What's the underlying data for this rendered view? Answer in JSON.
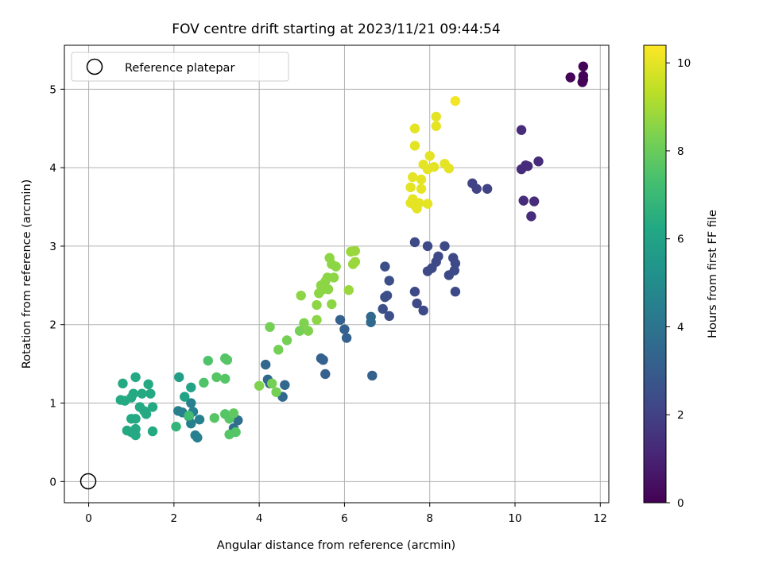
{
  "chart_data": {
    "type": "scatter",
    "title": "FOV centre drift starting at 2023/11/21 09:44:54",
    "xlabel": "Angular distance from reference (arcmin)",
    "ylabel": "Rotation from reference (arcmin)",
    "xlim": [
      -0.57,
      12.2
    ],
    "ylim": [
      -0.27,
      5.56
    ],
    "xticks": [
      0,
      2,
      4,
      6,
      8,
      10,
      12
    ],
    "yticks": [
      0,
      1,
      2,
      3,
      4,
      5
    ],
    "grid": true,
    "legend": {
      "position": "top-left",
      "entries": [
        "Reference platepar"
      ]
    },
    "reference_point": {
      "x": 0,
      "y": 0,
      "label": "Reference platepar"
    },
    "colorbar": {
      "label": "Hours from first FF file",
      "range": [
        0,
        10.4
      ],
      "ticks": [
        0,
        2,
        4,
        6,
        8,
        10
      ],
      "colormap": "viridis"
    },
    "points": [
      {
        "x": 11.3,
        "y": 5.15,
        "h": 0.1
      },
      {
        "x": 11.6,
        "y": 5.29,
        "h": 0.1
      },
      {
        "x": 11.6,
        "y": 5.17,
        "h": 0.1
      },
      {
        "x": 11.6,
        "y": 5.12,
        "h": 0.1
      },
      {
        "x": 11.58,
        "y": 5.09,
        "h": 0.1
      },
      {
        "x": 10.15,
        "y": 4.48,
        "h": 1.3
      },
      {
        "x": 10.55,
        "y": 4.08,
        "h": 1.3
      },
      {
        "x": 10.25,
        "y": 4.03,
        "h": 1.3
      },
      {
        "x": 10.3,
        "y": 4.02,
        "h": 1.3
      },
      {
        "x": 10.15,
        "y": 3.98,
        "h": 1.3
      },
      {
        "x": 10.2,
        "y": 3.58,
        "h": 1.3
      },
      {
        "x": 10.45,
        "y": 3.57,
        "h": 1.3
      },
      {
        "x": 10.38,
        "y": 3.38,
        "h": 1.3
      },
      {
        "x": 9.0,
        "y": 3.8,
        "h": 2.0
      },
      {
        "x": 9.1,
        "y": 3.73,
        "h": 2.0
      },
      {
        "x": 9.35,
        "y": 3.73,
        "h": 2.0
      },
      {
        "x": 7.65,
        "y": 3.05,
        "h": 2.3
      },
      {
        "x": 7.95,
        "y": 3.0,
        "h": 2.3
      },
      {
        "x": 8.35,
        "y": 3.0,
        "h": 2.3
      },
      {
        "x": 8.2,
        "y": 2.87,
        "h": 2.3
      },
      {
        "x": 8.15,
        "y": 2.8,
        "h": 2.3
      },
      {
        "x": 8.55,
        "y": 2.85,
        "h": 2.3
      },
      {
        "x": 8.6,
        "y": 2.78,
        "h": 2.3
      },
      {
        "x": 8.05,
        "y": 2.72,
        "h": 2.3
      },
      {
        "x": 7.95,
        "y": 2.68,
        "h": 2.3
      },
      {
        "x": 8.58,
        "y": 2.69,
        "h": 2.3
      },
      {
        "x": 8.45,
        "y": 2.63,
        "h": 2.3
      },
      {
        "x": 8.6,
        "y": 2.42,
        "h": 2.3
      },
      {
        "x": 7.65,
        "y": 2.42,
        "h": 2.3
      },
      {
        "x": 7.7,
        "y": 2.27,
        "h": 2.3
      },
      {
        "x": 7.85,
        "y": 2.18,
        "h": 2.3
      },
      {
        "x": 6.95,
        "y": 2.74,
        "h": 2.5
      },
      {
        "x": 7.05,
        "y": 2.56,
        "h": 2.5
      },
      {
        "x": 7.0,
        "y": 2.37,
        "h": 2.5
      },
      {
        "x": 6.95,
        "y": 2.35,
        "h": 2.5
      },
      {
        "x": 6.9,
        "y": 2.2,
        "h": 2.5
      },
      {
        "x": 7.05,
        "y": 2.11,
        "h": 2.5
      },
      {
        "x": 5.9,
        "y": 2.06,
        "h": 3.2
      },
      {
        "x": 6.0,
        "y": 1.94,
        "h": 3.2
      },
      {
        "x": 6.05,
        "y": 1.83,
        "h": 3.2
      },
      {
        "x": 5.45,
        "y": 1.57,
        "h": 3.2
      },
      {
        "x": 5.5,
        "y": 1.55,
        "h": 3.2
      },
      {
        "x": 5.55,
        "y": 1.37,
        "h": 3.2
      },
      {
        "x": 6.65,
        "y": 1.35,
        "h": 3.2
      },
      {
        "x": 6.62,
        "y": 2.1,
        "h": 3.5
      },
      {
        "x": 6.62,
        "y": 2.03,
        "h": 3.5
      },
      {
        "x": 4.15,
        "y": 1.49,
        "h": 3.5
      },
      {
        "x": 4.2,
        "y": 1.3,
        "h": 3.5
      },
      {
        "x": 4.25,
        "y": 1.25,
        "h": 3.5
      },
      {
        "x": 4.6,
        "y": 1.23,
        "h": 3.5
      },
      {
        "x": 4.55,
        "y": 1.08,
        "h": 3.5
      },
      {
        "x": 3.4,
        "y": 0.68,
        "h": 3.8
      },
      {
        "x": 3.5,
        "y": 0.78,
        "h": 3.8
      },
      {
        "x": 2.1,
        "y": 0.9,
        "h": 4.5
      },
      {
        "x": 2.2,
        "y": 0.88,
        "h": 4.5
      },
      {
        "x": 2.4,
        "y": 1.0,
        "h": 4.5
      },
      {
        "x": 2.45,
        "y": 0.89,
        "h": 4.5
      },
      {
        "x": 2.6,
        "y": 0.79,
        "h": 4.5
      },
      {
        "x": 2.5,
        "y": 0.59,
        "h": 4.5
      },
      {
        "x": 2.55,
        "y": 0.56,
        "h": 4.5
      },
      {
        "x": 2.4,
        "y": 0.74,
        "h": 4.5
      },
      {
        "x": 2.35,
        "y": 0.83,
        "h": 4.5
      },
      {
        "x": 2.12,
        "y": 1.33,
        "h": 5.8
      },
      {
        "x": 2.4,
        "y": 1.2,
        "h": 6.0
      },
      {
        "x": 2.25,
        "y": 1.08,
        "h": 6.0
      },
      {
        "x": 0.8,
        "y": 1.25,
        "h": 6.3
      },
      {
        "x": 1.1,
        "y": 1.33,
        "h": 6.3
      },
      {
        "x": 1.4,
        "y": 1.24,
        "h": 6.3
      },
      {
        "x": 0.75,
        "y": 1.04,
        "h": 6.3
      },
      {
        "x": 0.85,
        "y": 1.03,
        "h": 6.3
      },
      {
        "x": 1.0,
        "y": 1.07,
        "h": 6.3
      },
      {
        "x": 1.05,
        "y": 1.12,
        "h": 6.3
      },
      {
        "x": 1.25,
        "y": 1.12,
        "h": 6.3
      },
      {
        "x": 1.45,
        "y": 1.12,
        "h": 6.3
      },
      {
        "x": 1.2,
        "y": 0.95,
        "h": 6.3
      },
      {
        "x": 1.3,
        "y": 0.9,
        "h": 6.3
      },
      {
        "x": 1.35,
        "y": 0.86,
        "h": 6.3
      },
      {
        "x": 1.5,
        "y": 0.95,
        "h": 6.3
      },
      {
        "x": 1.0,
        "y": 0.8,
        "h": 6.3
      },
      {
        "x": 1.1,
        "y": 0.8,
        "h": 6.3
      },
      {
        "x": 0.9,
        "y": 0.65,
        "h": 6.3
      },
      {
        "x": 1.0,
        "y": 0.63,
        "h": 6.3
      },
      {
        "x": 1.1,
        "y": 0.67,
        "h": 6.3
      },
      {
        "x": 1.1,
        "y": 0.59,
        "h": 6.3
      },
      {
        "x": 1.5,
        "y": 0.64,
        "h": 6.3
      },
      {
        "x": 2.05,
        "y": 0.7,
        "h": 6.8
      },
      {
        "x": 2.35,
        "y": 0.84,
        "h": 7.2
      },
      {
        "x": 2.7,
        "y": 1.26,
        "h": 7.5
      },
      {
        "x": 2.8,
        "y": 1.54,
        "h": 7.5
      },
      {
        "x": 2.95,
        "y": 0.81,
        "h": 7.6
      },
      {
        "x": 3.0,
        "y": 1.33,
        "h": 7.6
      },
      {
        "x": 3.2,
        "y": 1.31,
        "h": 7.6
      },
      {
        "x": 3.2,
        "y": 1.57,
        "h": 7.6
      },
      {
        "x": 3.25,
        "y": 1.55,
        "h": 7.6
      },
      {
        "x": 3.2,
        "y": 0.86,
        "h": 7.6
      },
      {
        "x": 3.3,
        "y": 0.8,
        "h": 7.6
      },
      {
        "x": 3.3,
        "y": 0.6,
        "h": 7.6
      },
      {
        "x": 3.45,
        "y": 0.63,
        "h": 7.6
      },
      {
        "x": 3.4,
        "y": 0.87,
        "h": 7.8
      },
      {
        "x": 4.0,
        "y": 1.22,
        "h": 8.4
      },
      {
        "x": 4.25,
        "y": 1.97,
        "h": 8.2
      },
      {
        "x": 4.3,
        "y": 1.25,
        "h": 8.2
      },
      {
        "x": 4.4,
        "y": 1.14,
        "h": 8.2
      },
      {
        "x": 4.45,
        "y": 1.68,
        "h": 8.2
      },
      {
        "x": 4.65,
        "y": 1.8,
        "h": 8.2
      },
      {
        "x": 4.95,
        "y": 1.92,
        "h": 8.2
      },
      {
        "x": 4.98,
        "y": 2.37,
        "h": 8.6
      },
      {
        "x": 5.05,
        "y": 2.02,
        "h": 8.4
      },
      {
        "x": 5.15,
        "y": 1.92,
        "h": 8.4
      },
      {
        "x": 5.35,
        "y": 2.25,
        "h": 8.6
      },
      {
        "x": 5.35,
        "y": 2.06,
        "h": 8.6
      },
      {
        "x": 5.4,
        "y": 2.4,
        "h": 8.6
      },
      {
        "x": 5.45,
        "y": 2.5,
        "h": 8.6
      },
      {
        "x": 5.5,
        "y": 2.45,
        "h": 8.6
      },
      {
        "x": 5.55,
        "y": 2.55,
        "h": 8.6
      },
      {
        "x": 5.6,
        "y": 2.6,
        "h": 8.6
      },
      {
        "x": 5.62,
        "y": 2.45,
        "h": 8.6
      },
      {
        "x": 5.65,
        "y": 2.85,
        "h": 8.6
      },
      {
        "x": 5.7,
        "y": 2.77,
        "h": 8.6
      },
      {
        "x": 5.7,
        "y": 2.26,
        "h": 8.6
      },
      {
        "x": 5.75,
        "y": 2.6,
        "h": 8.6
      },
      {
        "x": 5.8,
        "y": 2.74,
        "h": 8.6
      },
      {
        "x": 6.1,
        "y": 2.44,
        "h": 8.8
      },
      {
        "x": 6.15,
        "y": 2.93,
        "h": 8.8
      },
      {
        "x": 6.2,
        "y": 2.77,
        "h": 8.8
      },
      {
        "x": 6.25,
        "y": 2.8,
        "h": 8.8
      },
      {
        "x": 6.25,
        "y": 2.94,
        "h": 8.8
      },
      {
        "x": 7.65,
        "y": 4.5,
        "h": 10.0
      },
      {
        "x": 7.65,
        "y": 4.28,
        "h": 10.0
      },
      {
        "x": 7.6,
        "y": 3.88,
        "h": 10.0
      },
      {
        "x": 7.55,
        "y": 3.75,
        "h": 10.0
      },
      {
        "x": 7.6,
        "y": 3.6,
        "h": 10.0
      },
      {
        "x": 7.55,
        "y": 3.55,
        "h": 10.0
      },
      {
        "x": 7.65,
        "y": 3.52,
        "h": 10.0
      },
      {
        "x": 7.7,
        "y": 3.48,
        "h": 10.0
      },
      {
        "x": 7.75,
        "y": 3.55,
        "h": 10.0
      },
      {
        "x": 7.8,
        "y": 3.73,
        "h": 10.0
      },
      {
        "x": 7.8,
        "y": 3.85,
        "h": 10.0
      },
      {
        "x": 7.85,
        "y": 4.04,
        "h": 10.0
      },
      {
        "x": 7.95,
        "y": 3.98,
        "h": 10.0
      },
      {
        "x": 7.95,
        "y": 3.54,
        "h": 10.0
      },
      {
        "x": 8.0,
        "y": 4.15,
        "h": 10.0
      },
      {
        "x": 8.1,
        "y": 4.01,
        "h": 10.0
      },
      {
        "x": 8.15,
        "y": 4.53,
        "h": 10.0
      },
      {
        "x": 8.15,
        "y": 4.65,
        "h": 10.0
      },
      {
        "x": 8.35,
        "y": 4.05,
        "h": 10.0
      },
      {
        "x": 8.45,
        "y": 3.99,
        "h": 10.0
      },
      {
        "x": 8.6,
        "y": 4.85,
        "h": 10.2
      }
    ]
  }
}
